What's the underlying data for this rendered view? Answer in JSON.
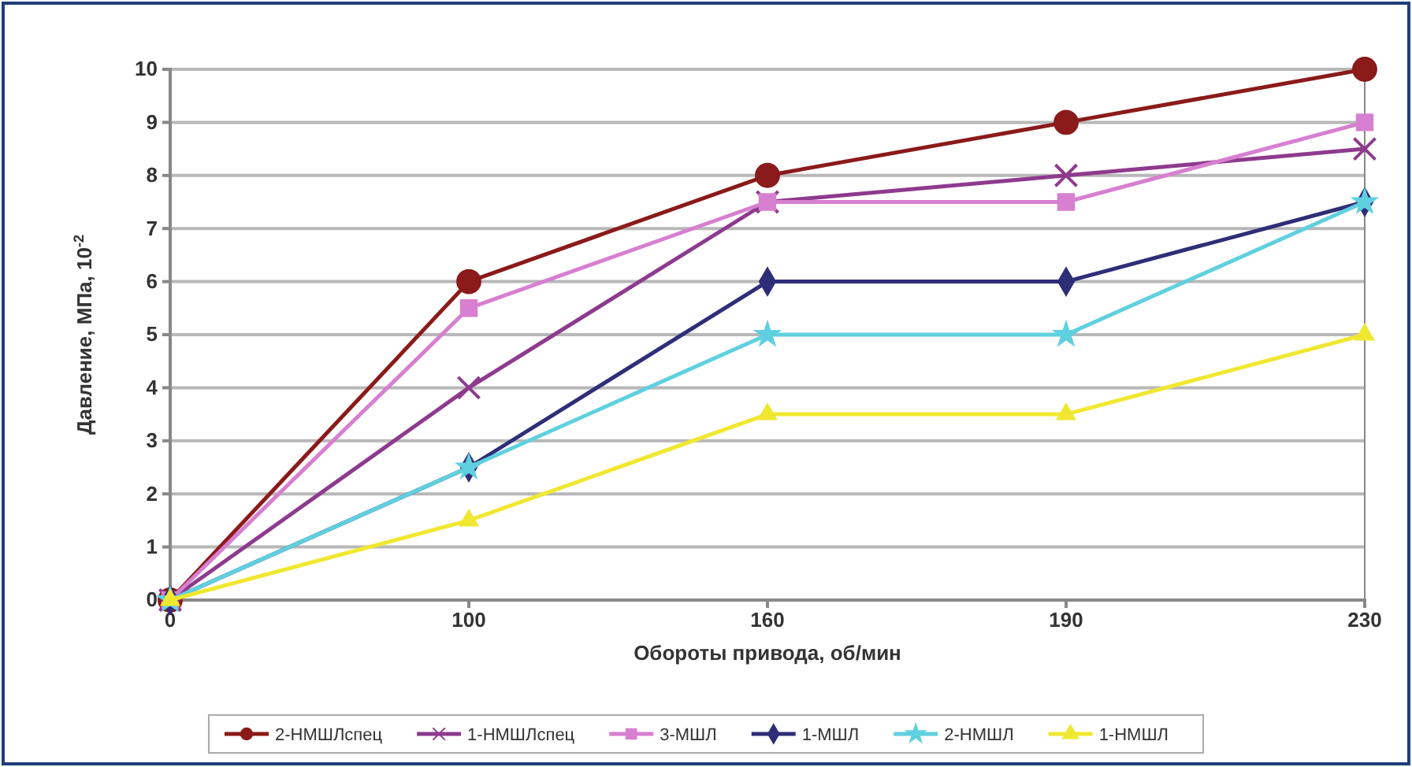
{
  "chart_data": {
    "type": "line",
    "xlabel": "Обороты привода, об/мин",
    "ylabel": "Давление, МПа, 10$^{-2}$",
    "categories": [
      "0",
      "100",
      "160",
      "190",
      "230"
    ],
    "ylim": [
      0,
      10
    ],
    "yticks": [
      0,
      1,
      2,
      3,
      4,
      5,
      6,
      7,
      8,
      9,
      10
    ],
    "grid": "y",
    "legend": "bottom",
    "line_style": "solid",
    "series": [
      {
        "name": "2-НМШЛспец",
        "color": "#8b1a1a",
        "marker": "circle",
        "values": [
          0,
          6,
          8,
          9,
          10
        ]
      },
      {
        "name": "1-НМШЛспец",
        "color": "#8e3a8e",
        "marker": "cross",
        "values": [
          0,
          4,
          7.5,
          8,
          8.5
        ]
      },
      {
        "name": "3-МШЛ",
        "color": "#d77fd0",
        "marker": "square",
        "values": [
          0,
          5.5,
          7.5,
          7.5,
          9
        ]
      },
      {
        "name": "1-МШЛ",
        "color": "#2e2e78",
        "marker": "diamond",
        "values": [
          0,
          2.5,
          6,
          6,
          7.5
        ]
      },
      {
        "name": "2-НМШЛ",
        "color": "#5fd0e0",
        "marker": "star",
        "values": [
          0,
          2.5,
          5,
          5,
          7.5
        ]
      },
      {
        "name": "1-НМШЛ",
        "color": "#f0e830",
        "marker": "triangle",
        "values": [
          0,
          1.5,
          3.5,
          3.5,
          5
        ]
      }
    ]
  }
}
